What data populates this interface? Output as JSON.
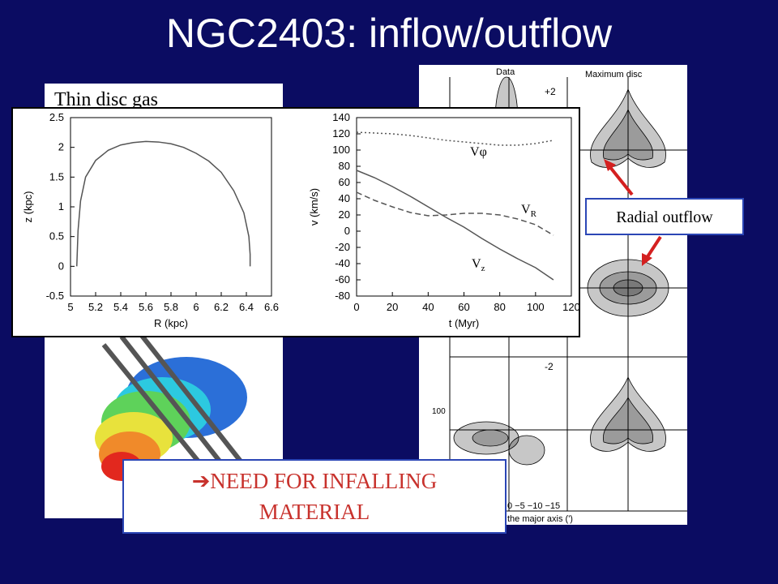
{
  "title": "NGC2403: inflow/outflow",
  "left_panel": {
    "label": "Thin disc gas"
  },
  "plots": [
    {
      "type": "line",
      "xlabel": "R (kpc)",
      "ylabel": "z (kpc)",
      "xlim": [
        5,
        6.6
      ],
      "ylim": [
        -0.5,
        2.5
      ],
      "xticks": [
        5,
        5.2,
        5.4,
        5.6,
        5.8,
        6,
        6.2,
        6.4,
        6.6
      ],
      "yticks": [
        -0.5,
        0,
        0.5,
        1,
        1.5,
        2,
        2.5
      ],
      "series": [
        {
          "color": "#555555",
          "dash": "solid",
          "x": [
            5.05,
            5.06,
            5.08,
            5.12,
            5.2,
            5.3,
            5.4,
            5.5,
            5.6,
            5.7,
            5.8,
            5.9,
            6.0,
            6.1,
            6.2,
            6.3,
            6.38,
            6.42,
            6.43,
            6.43
          ],
          "values": [
            0,
            0.6,
            1.1,
            1.5,
            1.78,
            1.95,
            2.04,
            2.08,
            2.1,
            2.09,
            2.06,
            2.0,
            1.9,
            1.77,
            1.58,
            1.27,
            0.9,
            0.5,
            0.2,
            0
          ]
        }
      ]
    },
    {
      "type": "line",
      "xlabel": "t (Myr)",
      "ylabel": "v (km/s)",
      "xlim": [
        0,
        120
      ],
      "ylim": [
        -80,
        140
      ],
      "xticks": [
        0,
        20,
        40,
        60,
        80,
        100,
        120
      ],
      "yticks": [
        -80,
        -60,
        -40,
        -20,
        0,
        20,
        40,
        60,
        80,
        100,
        120,
        140
      ],
      "series": [
        {
          "label": [
            "V",
            "φ"
          ],
          "color": "#555555",
          "dash": "dotted",
          "x": [
            0,
            10,
            20,
            30,
            40,
            50,
            60,
            70,
            80,
            90,
            100,
            110
          ],
          "values": [
            122,
            121,
            120,
            118,
            115,
            112,
            110,
            108,
            106,
            106,
            108,
            112
          ]
        },
        {
          "label": [
            "V",
            "R"
          ],
          "color": "#555555",
          "dash": "dashed",
          "x": [
            0,
            10,
            20,
            30,
            40,
            50,
            60,
            70,
            80,
            90,
            100,
            110
          ],
          "values": [
            48,
            38,
            30,
            23,
            19,
            20,
            22,
            22,
            20,
            15,
            8,
            -5
          ]
        },
        {
          "label": [
            "V",
            "z"
          ],
          "color": "#555555",
          "dash": "solid",
          "x": [
            0,
            10,
            20,
            30,
            40,
            50,
            60,
            70,
            80,
            90,
            100,
            110
          ],
          "values": [
            75,
            66,
            55,
            43,
            30,
            17,
            5,
            -9,
            -22,
            -34,
            -45,
            -60
          ]
        }
      ]
    }
  ],
  "right_image": {
    "headers": [
      "Data",
      "Maximum disc"
    ],
    "markers": [
      "+2",
      "-2"
    ],
    "y_label": "100",
    "x_ticks": "0  −5 −10 −15",
    "x_label": "the major axis (')"
  },
  "callouts": {
    "radial_outflow": "Radial outflow",
    "conclusion": [
      "➔NEED FOR INFALLING",
      "MATERIAL"
    ]
  }
}
